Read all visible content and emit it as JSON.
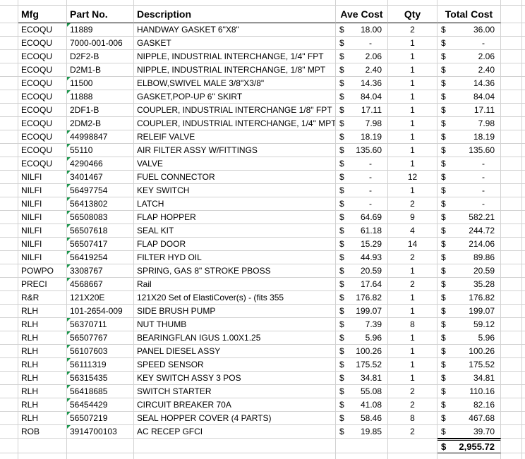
{
  "table": {
    "currency_symbol": "$",
    "columns": [
      "Mfg",
      "Part No.",
      "Description",
      "Ave Cost",
      "Qty",
      "Total Cost"
    ],
    "rows": [
      {
        "mfg": "ECOQU",
        "part": "11889",
        "error_flag": true,
        "desc": "HANDWAY GASKET 6\"X8\"",
        "ave": "18.00",
        "qty": "2",
        "total": "36.00"
      },
      {
        "mfg": "ECOQU",
        "part": "7000-001-006",
        "error_flag": false,
        "desc": "GASKET",
        "ave": "-",
        "qty": "1",
        "total": "-"
      },
      {
        "mfg": "ECOQU",
        "part": "D2F2-B",
        "error_flag": false,
        "desc": "NIPPLE, INDUSTRIAL INTERCHANGE, 1/4\" FPT",
        "ave": "2.06",
        "qty": "1",
        "total": "2.06"
      },
      {
        "mfg": "ECOQU",
        "part": "D2M1-B",
        "error_flag": false,
        "desc": "NIPPLE, INDUSTRIAL INTERCHANGE, 1/8\" MPT",
        "ave": "2.40",
        "qty": "1",
        "total": "2.40"
      },
      {
        "mfg": "ECOQU",
        "part": "11500",
        "error_flag": true,
        "desc": "ELBOW,SWIVEL MALE 3/8\"X3/8\"",
        "ave": "14.36",
        "qty": "1",
        "total": "14.36"
      },
      {
        "mfg": "ECOQU",
        "part": "11888",
        "error_flag": true,
        "desc": "GASKET,POP-UP 6\" SKIRT",
        "ave": "84.04",
        "qty": "1",
        "total": "84.04"
      },
      {
        "mfg": "ECOQU",
        "part": "2DF1-B",
        "error_flag": false,
        "desc": "COUPLER, INDUSTRIAL INTERCHANGE 1/8\" FPT",
        "ave": "17.11",
        "qty": "1",
        "total": "17.11"
      },
      {
        "mfg": "ECOQU",
        "part": "2DM2-B",
        "error_flag": false,
        "desc": "COUPLER, INDUSTRIAL INTERCHANGE, 1/4\" MPT",
        "ave": "7.98",
        "qty": "1",
        "total": "7.98"
      },
      {
        "mfg": "ECOQU",
        "part": "44998847",
        "error_flag": true,
        "desc": "RELEIF VALVE",
        "ave": "18.19",
        "qty": "1",
        "total": "18.19"
      },
      {
        "mfg": "ECOQU",
        "part": "55110",
        "error_flag": true,
        "desc": "AIR FILTER ASSY W/FITTINGS",
        "ave": "135.60",
        "qty": "1",
        "total": "135.60"
      },
      {
        "mfg": "ECOQU",
        "part": "4290466",
        "error_flag": true,
        "desc": "VALVE",
        "ave": "-",
        "qty": "1",
        "total": "-"
      },
      {
        "mfg": "NILFI",
        "part": "3401467",
        "error_flag": true,
        "desc": "FUEL CONNECTOR",
        "ave": "-",
        "qty": "12",
        "total": "-"
      },
      {
        "mfg": "NILFI",
        "part": "56497754",
        "error_flag": true,
        "desc": "KEY SWITCH",
        "ave": "-",
        "qty": "1",
        "total": "-"
      },
      {
        "mfg": "NILFI",
        "part": "56413802",
        "error_flag": true,
        "desc": "LATCH",
        "ave": "-",
        "qty": "2",
        "total": "-"
      },
      {
        "mfg": "NILFI",
        "part": "56508083",
        "error_flag": true,
        "desc": "FLAP HOPPER",
        "ave": "64.69",
        "qty": "9",
        "total": "582.21"
      },
      {
        "mfg": "NILFI",
        "part": "56507618",
        "error_flag": true,
        "desc": "SEAL KIT",
        "ave": "61.18",
        "qty": "4",
        "total": "244.72"
      },
      {
        "mfg": "NILFI",
        "part": "56507417",
        "error_flag": true,
        "desc": "FLAP DOOR",
        "ave": "15.29",
        "qty": "14",
        "total": "214.06"
      },
      {
        "mfg": "NILFI",
        "part": "56419254",
        "error_flag": true,
        "desc": "FILTER HYD OIL",
        "ave": "44.93",
        "qty": "2",
        "total": "89.86"
      },
      {
        "mfg": "POWPO",
        "part": "3308767",
        "error_flag": true,
        "desc": "SPRING, GAS 8\" STROKE PBOSS",
        "ave": "20.59",
        "qty": "1",
        "total": "20.59"
      },
      {
        "mfg": "PRECI",
        "part": "4568667",
        "error_flag": true,
        "desc": "Rail",
        "ave": "17.64",
        "qty": "2",
        "total": "35.28"
      },
      {
        "mfg": "R&R",
        "part": "121X20E",
        "error_flag": false,
        "desc": "121X20 Set of ElastiCover(s) - (fits 355",
        "ave": "176.82",
        "qty": "1",
        "total": "176.82"
      },
      {
        "mfg": "RLH",
        "part": "101-2654-009",
        "error_flag": false,
        "desc": "SIDE BRUSH PUMP",
        "ave": "199.07",
        "qty": "1",
        "total": "199.07"
      },
      {
        "mfg": "RLH",
        "part": "56370711",
        "error_flag": true,
        "desc": "NUT THUMB",
        "ave": "7.39",
        "qty": "8",
        "total": "59.12"
      },
      {
        "mfg": "RLH",
        "part": "56507767",
        "error_flag": true,
        "desc": "BEARINGFLAN IGUS 1.00X1.25",
        "ave": "5.96",
        "qty": "1",
        "total": "5.96"
      },
      {
        "mfg": "RLH",
        "part": "56107603",
        "error_flag": true,
        "desc": "PANEL DIESEL ASSY",
        "ave": "100.26",
        "qty": "1",
        "total": "100.26"
      },
      {
        "mfg": "RLH",
        "part": "56111319",
        "error_flag": true,
        "desc": "SPEED SENSOR",
        "ave": "175.52",
        "qty": "1",
        "total": "175.52"
      },
      {
        "mfg": "RLH",
        "part": "56315435",
        "error_flag": true,
        "desc": "KEY SWITCH ASSY 3 POS",
        "ave": "34.81",
        "qty": "1",
        "total": "34.81"
      },
      {
        "mfg": "RLH",
        "part": "56418685",
        "error_flag": true,
        "desc": "SWITCH STARTER",
        "ave": "55.08",
        "qty": "2",
        "total": "110.16"
      },
      {
        "mfg": "RLH",
        "part": "56454429",
        "error_flag": true,
        "desc": "CIRCUIT BREAKER 70A",
        "ave": "41.08",
        "qty": "2",
        "total": "82.16"
      },
      {
        "mfg": "RLH",
        "part": "56507219",
        "error_flag": true,
        "desc": "SEAL HOPPER COVER (4 PARTS)",
        "ave": "58.46",
        "qty": "8",
        "total": "467.68"
      },
      {
        "mfg": "ROB",
        "part": "3914700103",
        "error_flag": true,
        "desc": "AC RECEP GFCI",
        "ave": "19.85",
        "qty": "2",
        "total": "39.70"
      }
    ],
    "grand_total": "2,955.72"
  },
  "colors": {
    "background": "#ffffff",
    "gridline": "#d2d2d2",
    "text": "#000000",
    "dark_border": "#000000",
    "error_flag_green": "#18964a"
  }
}
